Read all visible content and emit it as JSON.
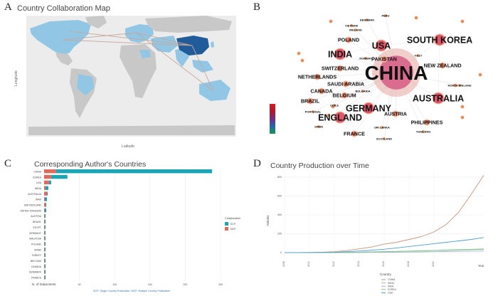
{
  "panels": {
    "a": {
      "letter": "A",
      "title": "Country Collaboration Map",
      "xlabel": "Latitude",
      "ylabel": "Longitude"
    },
    "b": {
      "letter": "B"
    },
    "c": {
      "letter": "C",
      "title": "Corresponding Author's Countries",
      "xlabel": "N. of Documents",
      "legend_title": "Collaboration",
      "legend_items": [
        "SCP",
        "MCP"
      ],
      "caption": "SCP: Single Country Publication, MCP: Multiple Country Publication"
    },
    "d": {
      "letter": "D",
      "title": "Country Production over Time",
      "ylabel": "Articles",
      "xlabel": "Year",
      "legend_title": "Country"
    }
  },
  "colors": {
    "ocean": "#ececec",
    "land": "#c8c8c8",
    "collab": "#91c7e5",
    "china": "#1f5c99",
    "link": "#c7a79b",
    "scp": "#1aa6b5",
    "mcp": "#e06b5d"
  },
  "chart_data": [
    {
      "type": "map",
      "panel": "A",
      "title": "Country Collaboration Map",
      "xlabel": "Latitude",
      "ylabel": "Longitude",
      "highlight": "China",
      "links": [
        "China-USA",
        "China-Canada",
        "China-Europe",
        "China-Australia",
        "USA-Europe"
      ]
    },
    {
      "type": "network",
      "panel": "B",
      "nodes": [
        {
          "label": "CHINA",
          "size": "large"
        },
        {
          "label": "SOUTH KOREA",
          "size": "medium"
        },
        {
          "label": "USA",
          "size": "medium"
        },
        {
          "label": "INDIA",
          "size": "medium"
        },
        {
          "label": "AUSTRALIA",
          "size": "medium"
        },
        {
          "label": "GERMANY",
          "size": "medium"
        },
        {
          "label": "ENGLAND",
          "size": "medium"
        },
        {
          "label": "SWITZERLAND",
          "size": "small"
        },
        {
          "label": "POLAND",
          "size": "small"
        },
        {
          "label": "CANADA",
          "size": "small"
        },
        {
          "label": "NEW ZEALAND",
          "size": "small"
        },
        {
          "label": "NETHERLANDS",
          "size": "small"
        },
        {
          "label": "SAUDI ARABIA",
          "size": "small"
        },
        {
          "label": "BELGIUM",
          "size": "small"
        },
        {
          "label": "PAKISTAN",
          "size": "small"
        },
        {
          "label": "BRAZIL",
          "size": "small"
        },
        {
          "label": "FRANCE",
          "size": "small"
        },
        {
          "label": "PHILIPPINES",
          "size": "small"
        },
        {
          "label": "AUSTRIA",
          "size": "small"
        },
        {
          "label": "DENMARK",
          "size": "tiny"
        },
        {
          "label": "PERU",
          "size": "tiny"
        },
        {
          "label": "VIETNAM",
          "size": "tiny"
        },
        {
          "label": "IRELAND",
          "size": "tiny"
        },
        {
          "label": "NORWAY",
          "size": "tiny"
        },
        {
          "label": "ITALY",
          "size": "tiny"
        },
        {
          "label": "NORTH IRELAND",
          "size": "tiny"
        },
        {
          "label": "BULGARIA",
          "size": "tiny"
        },
        {
          "label": "PORTUGAL",
          "size": "tiny"
        },
        {
          "label": "SPAIN",
          "size": "tiny"
        },
        {
          "label": "SRI LANKA",
          "size": "tiny"
        },
        {
          "label": "SCOTLAND",
          "size": "tiny"
        },
        {
          "label": "THAILAND",
          "size": "tiny"
        },
        {
          "label": "CHILE",
          "size": "tiny"
        }
      ]
    },
    {
      "type": "bar",
      "panel": "C",
      "orientation": "horizontal",
      "stacked": true,
      "title": "Corresponding Author's Countries",
      "xlabel": "N. of Documents",
      "xlim": [
        0,
        250
      ],
      "xticks": [
        0,
        50,
        100,
        150,
        200,
        250
      ],
      "categories": [
        "CHINA",
        "KOREA",
        "USA",
        "INDIA",
        "AUSTRALIA",
        "IRAN",
        "SWITZERLAND",
        "UNITED KINGDOM",
        "AUSTRIA",
        "BRAZIL",
        "EGYPT",
        "GERMANY",
        "MALAYSIA",
        "POLAND",
        "SPAIN",
        "TURKEY",
        "BELGIUM",
        "CANADA",
        "DENMARK",
        "FRANCE"
      ],
      "series": [
        {
          "name": "SCP",
          "values": [
            221,
            23,
            3,
            4,
            1,
            3,
            1,
            2,
            1,
            1,
            1,
            1,
            1,
            1,
            1,
            1,
            1,
            1,
            1,
            1
          ]
        },
        {
          "name": "MCP",
          "values": [
            17,
            10,
            7,
            2,
            4,
            1,
            2,
            1,
            1,
            1,
            1,
            1,
            1,
            1,
            1,
            1,
            1,
            1,
            1,
            1
          ]
        }
      ],
      "legend_title": "Collaboration",
      "legend_position": "right"
    },
    {
      "type": "line",
      "panel": "D",
      "title": "Country Production over Time",
      "xlabel": "Year",
      "ylabel": "Articles",
      "x": [
        2008,
        2009,
        2010,
        2011,
        2012,
        2013,
        2014,
        2015,
        2016,
        2017,
        2018,
        2019,
        2020,
        2021,
        2022,
        2023,
        2024
      ],
      "xticks": [
        2008,
        2010,
        2012,
        2014,
        2016,
        2018,
        2020
      ],
      "yticks": [
        0,
        200,
        400,
        600,
        800
      ],
      "ylim": [
        -60,
        860
      ],
      "legend_title": "Country",
      "legend_position": "bottom",
      "series": [
        {
          "name": "CHINA",
          "color": "#c8957e",
          "values": [
            0,
            1,
            2,
            4,
            10,
            22,
            40,
            60,
            90,
            110,
            140,
            170,
            220,
            300,
            430,
            620,
            820
          ]
        },
        {
          "name": "INDIA",
          "color": "#a3c0a0",
          "values": [
            0,
            0,
            0,
            1,
            2,
            3,
            5,
            8,
            10,
            13,
            16,
            20,
            24,
            28,
            32,
            36,
            40
          ]
        },
        {
          "name": "IRAN",
          "color": "#9fb6c7",
          "values": [
            0,
            0,
            0,
            0,
            1,
            1,
            2,
            3,
            4,
            5,
            6,
            8,
            10,
            12,
            14,
            16,
            18
          ]
        },
        {
          "name": "KOREA",
          "color": "#7bc28c",
          "values": [
            0,
            0,
            0,
            1,
            2,
            3,
            5,
            7,
            10,
            13,
            16,
            19,
            22,
            25,
            28,
            32,
            36
          ]
        },
        {
          "name": "USA",
          "color": "#4f9ed4",
          "values": [
            0,
            1,
            2,
            3,
            5,
            10,
            18,
            26,
            36,
            50,
            65,
            80,
            95,
            110,
            125,
            140,
            160
          ]
        }
      ]
    }
  ]
}
